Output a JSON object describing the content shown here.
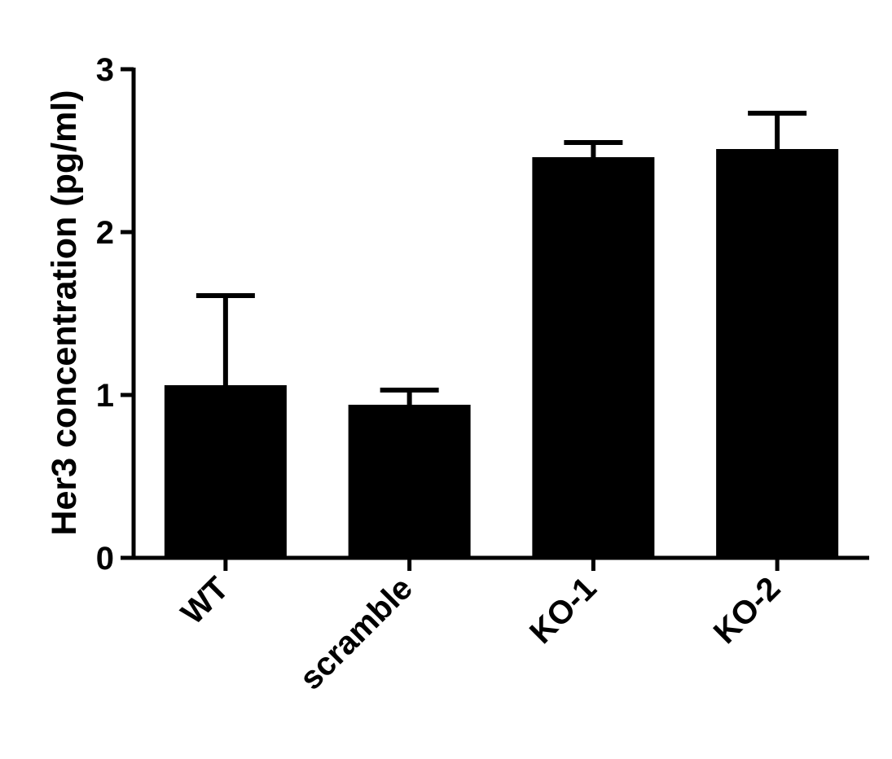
{
  "chart_data": {
    "type": "bar",
    "title": "",
    "ylabel": "Her3 concentration (pg/ml)",
    "xlabel": "",
    "ylim": [
      0,
      3
    ],
    "yticks": [
      "0",
      "1",
      "2",
      "3"
    ],
    "categories": [
      "WT",
      "scramble",
      "KO-1",
      "KO-2"
    ],
    "values": [
      1.06,
      0.94,
      2.46,
      2.51
    ],
    "error_upper": [
      0.55,
      0.09,
      0.09,
      0.22
    ],
    "bar_color": "#000000",
    "grid": false,
    "legend": "none"
  }
}
